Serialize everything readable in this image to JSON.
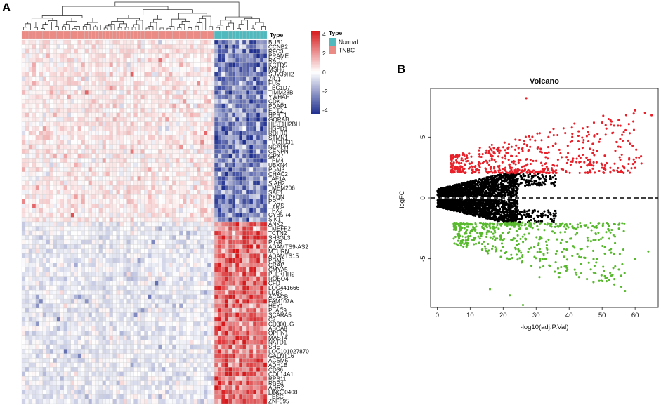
{
  "panel_a_label": "A",
  "panel_b_label": "B",
  "chart_data": [
    {
      "type": "heatmap",
      "title": "",
      "annotation_track_label": "Type",
      "legend": {
        "title": "Type",
        "entries": [
          {
            "name": "Normal",
            "color": "#4fb9bd"
          },
          {
            "name": "TNBC",
            "color": "#ea8b85"
          }
        ]
      },
      "color_scale": {
        "ticks": [
          "4",
          "2",
          "0",
          "-2",
          "-4"
        ],
        "range": [
          -4,
          4
        ],
        "low_color": "#1f2f8f",
        "mid_color": "#ffffff",
        "high_color": "#d7191c"
      },
      "sample_groups": [
        {
          "name": "TNBC",
          "count": 55
        },
        {
          "name": "Normal",
          "count": 15
        }
      ],
      "genes_up_in_tnbc": [
        "BUB1",
        "CCNB2",
        "RFC3",
        "PRAME",
        "RAD1",
        "KCTD5",
        "MSH6",
        "SUV39H2",
        "ZIC1",
        "FUS",
        "TBC1D7",
        "TIMM23B",
        "YWHAH",
        "CDK1",
        "PDAP1",
        "ECT2",
        "HPRT1",
        "GORAB",
        "HIST1H2BH",
        "HSPD1",
        "RDH10",
        "STMN1",
        "TBC1D31",
        "NCAPH",
        "CENPN",
        "GPX7",
        "TPM4",
        "UBXN4",
        "PGM3",
        "CHAC2",
        "TAF1A",
        "SIAH2",
        "TMEM206",
        "SAE1",
        "PXDN",
        "PRC1",
        "TYMS",
        "TPX2",
        "CYB5R4",
        "SIK1"
      ],
      "genes_down_in_tnbc": [
        "ANK2",
        "TMEFF2",
        "TCTN2",
        "SH3GL3",
        "PIGR",
        "ADAMTS9-AS2",
        "MTURN",
        "ADAMTS15",
        "PGM5",
        "CRAP",
        "CMYA5",
        "PLEKHH2",
        "ROBO4",
        "CFD",
        "LOC441666",
        "LDB2",
        "ACACB",
        "FAM107A",
        "HEY1",
        "PLAC9",
        "SCARA5",
        "C7",
        "CD300LG",
        "ABCA8",
        "OPHN1",
        "MAST4",
        "NATD1",
        "SHE",
        "LOC101927870",
        "GALNT16",
        "ACSM5",
        "ADH1B",
        "CD36",
        "COL14A1",
        "RPS11",
        "RBP4",
        "AGR2",
        "LINC00408",
        "TESC",
        "ZNF595"
      ]
    },
    {
      "type": "scatter",
      "title": "Volcano",
      "xlabel": "-log10(adj.P.Val)",
      "ylabel": "logFC",
      "xlim": [
        -2,
        67
      ],
      "ylim": [
        -9,
        9
      ],
      "xticks": [
        "0",
        "10",
        "20",
        "30",
        "40",
        "50",
        "60"
      ],
      "yticks": [
        "5",
        "0",
        "-5"
      ],
      "reference_line": {
        "y": 0,
        "style": "dashed"
      },
      "series": [
        {
          "name": "up",
          "color": "#e8202a",
          "rule": "logFC > 2"
        },
        {
          "name": "not significant",
          "color": "#000000",
          "rule": "|logFC| <= 2"
        },
        {
          "name": "down",
          "color": "#58b82e",
          "rule": "logFC < -2"
        }
      ],
      "highlight_points": [
        {
          "x": 27,
          "y": 8.2
        },
        {
          "x": 60,
          "y": 7.2
        },
        {
          "x": 63,
          "y": 7.0
        },
        {
          "x": 65,
          "y": 6.8
        },
        {
          "x": 55,
          "y": 6.4
        },
        {
          "x": 50,
          "y": 6.2
        },
        {
          "x": 46,
          "y": 5.2
        },
        {
          "x": 64,
          "y": -4.4
        },
        {
          "x": 60,
          "y": -5.0
        },
        {
          "x": 55,
          "y": -2.2
        },
        {
          "x": 48,
          "y": -6.2
        },
        {
          "x": 43,
          "y": -6.5
        },
        {
          "x": 37,
          "y": -6.5
        },
        {
          "x": 36,
          "y": -4.6
        },
        {
          "x": 22,
          "y": -8.0
        },
        {
          "x": 26,
          "y": -8.8
        },
        {
          "x": 16,
          "y": -7.5
        },
        {
          "x": 31,
          "y": -6.5
        }
      ]
    }
  ]
}
